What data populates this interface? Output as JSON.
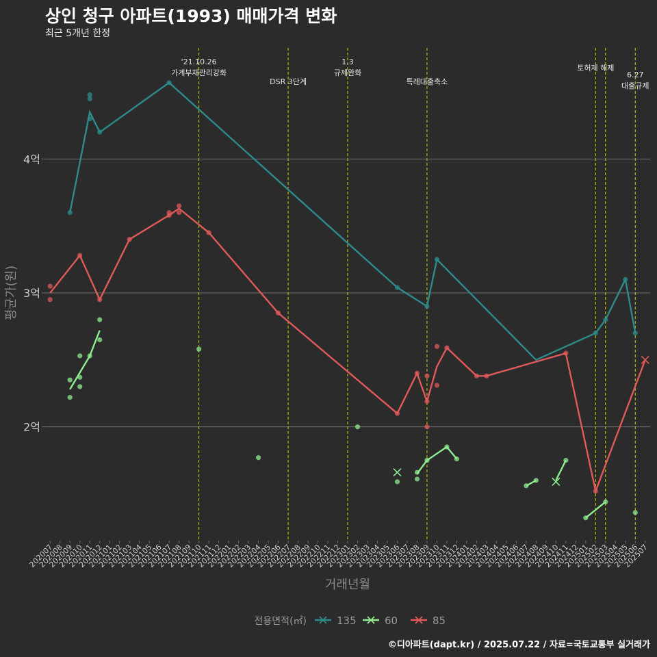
{
  "title": "상인 청구 아파트(1993) 매매가격 변화",
  "subtitle": "최근 5개년 한정",
  "footer": "©디아파트(dapt.kr) / 2025.07.22 / 자료=국토교통부 실거래가",
  "colors": {
    "background": "#2b2b2b",
    "gridline": "#6e6e6e",
    "event_line": "#d4d400",
    "text": "#cccccc",
    "s135": "#2e8b8b",
    "s60": "#90ee90",
    "s85": "#e05a5a"
  },
  "chart_data": {
    "type": "line",
    "xlabel": "거래년월",
    "ylabel": "평균가(원)",
    "legend_title": "전용면적(㎡)",
    "legend_position": "bottom",
    "grid": true,
    "x_categories": [
      "202007",
      "202008",
      "202009",
      "202010",
      "202011",
      "202012",
      "202101",
      "202102",
      "202103",
      "202104",
      "202105",
      "202106",
      "202107",
      "202108",
      "202109",
      "202110",
      "202111",
      "202112",
      "202201",
      "202202",
      "202203",
      "202204",
      "202205",
      "202206",
      "202207",
      "202208",
      "202209",
      "202210",
      "202211",
      "202212",
      "202301",
      "202302",
      "202303",
      "202304",
      "202305",
      "202306",
      "202307",
      "202308",
      "202309",
      "202310",
      "202311",
      "202312",
      "202401",
      "202402",
      "202403",
      "202404",
      "202405",
      "202406",
      "202407",
      "202408",
      "202409",
      "202410",
      "202411",
      "202412",
      "202501",
      "202502",
      "202503",
      "202504",
      "202505",
      "202506",
      "202507"
    ],
    "ylim": [
      1.15,
      4.85
    ],
    "y_ticks": [
      2,
      3,
      4
    ],
    "y_tick_labels": [
      "2억",
      "3억",
      "4억"
    ],
    "y_unit": "억",
    "events": [
      {
        "x": "202110",
        "label": "'21.10.26\n가계부채관리강화",
        "row": 0
      },
      {
        "x": "202207",
        "label": "DSR 3단계",
        "row": 1
      },
      {
        "x": "202301",
        "label": "1.3\n규제완화",
        "row": 0
      },
      {
        "x": "202309",
        "label": "특례대출축소",
        "row": 1
      },
      {
        "x": "202502",
        "label": "토허제 해제",
        "row": 0
      },
      {
        "x": "202503",
        "label": "",
        "row": 0
      },
      {
        "x": "202506",
        "label": "6.27\n대출규제",
        "row": 0.5
      }
    ],
    "series": [
      {
        "name": "135",
        "color_key": "s135",
        "line": [
          [
            "202009",
            3.6
          ],
          [
            "202011",
            4.35
          ],
          [
            "202012",
            4.2
          ],
          [
            "202107",
            4.57
          ],
          [
            "202306",
            3.04
          ],
          [
            "202309",
            2.9
          ],
          [
            "202310",
            3.25
          ],
          [
            "202408",
            2.5
          ],
          [
            "202502",
            2.7
          ],
          [
            "202503",
            2.8
          ],
          [
            "202505",
            3.1
          ],
          [
            "202506",
            2.7
          ]
        ],
        "points": [
          [
            "202009",
            3.6
          ],
          [
            "202011",
            4.48
          ],
          [
            "202011",
            4.45
          ],
          [
            "202011",
            4.3
          ],
          [
            "202012",
            4.2
          ],
          [
            "202107",
            4.57
          ],
          [
            "202306",
            3.04
          ],
          [
            "202309",
            2.9
          ],
          [
            "202310",
            3.25
          ],
          [
            "202502",
            2.7
          ],
          [
            "202503",
            2.8
          ],
          [
            "202505",
            3.1
          ],
          [
            "202506",
            2.7
          ]
        ],
        "crosses": []
      },
      {
        "name": "60",
        "color_key": "s60",
        "line": [
          [
            "202009",
            2.28
          ],
          [
            "202011",
            2.53
          ],
          [
            "202012",
            2.72
          ]
        ],
        "line_segments": [
          [
            [
              "202009",
              2.28
            ],
            [
              "202011",
              2.53
            ],
            [
              "202012",
              2.72
            ]
          ],
          [
            [
              "202308",
              1.65
            ],
            [
              "202309",
              1.75
            ],
            [
              "202311",
              1.85
            ],
            [
              "202312",
              1.76
            ]
          ],
          [
            [
              "202407",
              1.56
            ],
            [
              "202408",
              1.6
            ]
          ],
          [
            [
              "202410",
              1.6
            ],
            [
              "202411",
              1.75
            ]
          ],
          [
            [
              "202501",
              1.32
            ],
            [
              "202503",
              1.44
            ]
          ]
        ],
        "points": [
          [
            "202009",
            2.35
          ],
          [
            "202009",
            2.22
          ],
          [
            "202010",
            2.53
          ],
          [
            "202010",
            2.37
          ],
          [
            "202010",
            2.3
          ],
          [
            "202011",
            2.53
          ],
          [
            "202012",
            2.8
          ],
          [
            "202012",
            2.65
          ],
          [
            "202110",
            2.58
          ],
          [
            "202204",
            1.77
          ],
          [
            "202302",
            2.0
          ],
          [
            "202306",
            1.59
          ],
          [
            "202308",
            1.66
          ],
          [
            "202308",
            1.61
          ],
          [
            "202309",
            1.75
          ],
          [
            "202311",
            1.85
          ],
          [
            "202312",
            1.76
          ],
          [
            "202407",
            1.56
          ],
          [
            "202408",
            1.6
          ],
          [
            "202411",
            1.75
          ],
          [
            "202501",
            1.32
          ],
          [
            "202503",
            1.44
          ],
          [
            "202506",
            1.36
          ]
        ],
        "crosses": [
          [
            "202306",
            1.66
          ],
          [
            "202410",
            1.59
          ]
        ]
      },
      {
        "name": "85",
        "color_key": "s85",
        "line": [
          [
            "202007",
            3.0
          ],
          [
            "202010",
            3.28
          ],
          [
            "202012",
            2.95
          ],
          [
            "202103",
            3.4
          ],
          [
            "202107",
            3.58
          ],
          [
            "202108",
            3.63
          ],
          [
            "202111",
            3.45
          ],
          [
            "202206",
            2.85
          ],
          [
            "202306",
            2.1
          ],
          [
            "202308",
            2.4
          ],
          [
            "202309",
            2.19
          ],
          [
            "202310",
            2.45
          ],
          [
            "202311",
            2.59
          ],
          [
            "202402",
            2.38
          ],
          [
            "202403",
            2.38
          ],
          [
            "202411",
            2.55
          ],
          [
            "202502",
            1.52
          ],
          [
            "202507",
            2.5
          ]
        ],
        "points": [
          [
            "202007",
            3.05
          ],
          [
            "202007",
            2.95
          ],
          [
            "202010",
            3.28
          ],
          [
            "202012",
            2.95
          ],
          [
            "202103",
            3.4
          ],
          [
            "202107",
            3.58
          ],
          [
            "202107",
            3.6
          ],
          [
            "202108",
            3.65
          ],
          [
            "202108",
            3.6
          ],
          [
            "202111",
            3.45
          ],
          [
            "202206",
            2.85
          ],
          [
            "202306",
            2.1
          ],
          [
            "202308",
            2.4
          ],
          [
            "202309",
            2.38
          ],
          [
            "202309",
            2.19
          ],
          [
            "202309",
            2.0
          ],
          [
            "202310",
            2.6
          ],
          [
            "202310",
            2.31
          ],
          [
            "202311",
            2.59
          ],
          [
            "202402",
            2.38
          ],
          [
            "202403",
            2.38
          ],
          [
            "202411",
            2.55
          ],
          [
            "202502",
            1.52
          ]
        ],
        "crosses": [
          [
            "202507",
            2.5
          ]
        ]
      }
    ]
  }
}
